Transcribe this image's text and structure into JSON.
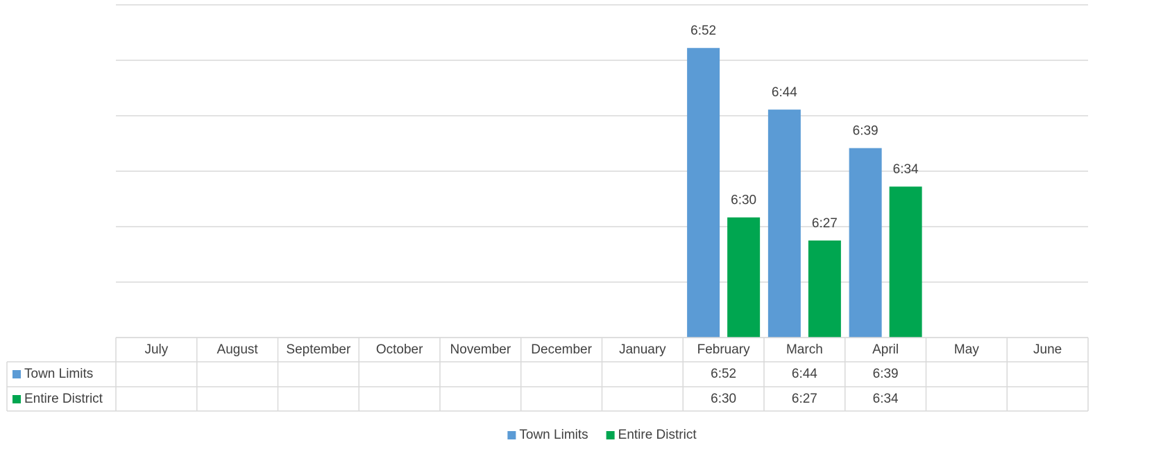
{
  "chart_data": {
    "type": "bar",
    "categories": [
      "July",
      "August",
      "September",
      "October",
      "November",
      "December",
      "January",
      "February",
      "March",
      "April",
      "May",
      "June"
    ],
    "series": [
      {
        "name": "Town Limits",
        "color": "#5b9bd5",
        "values": [
          null,
          null,
          null,
          null,
          null,
          null,
          null,
          412,
          404,
          399,
          null,
          null
        ],
        "value_labels": [
          null,
          null,
          null,
          null,
          null,
          null,
          null,
          "6:52",
          "6:44",
          "6:39",
          null,
          null
        ]
      },
      {
        "name": "Entire District",
        "color": "#00a650",
        "values": [
          null,
          null,
          null,
          null,
          null,
          null,
          null,
          390,
          387,
          394,
          null,
          null
        ],
        "value_labels": [
          null,
          null,
          null,
          null,
          null,
          null,
          null,
          "6:30",
          "6:27",
          "6:34",
          null,
          null
        ]
      }
    ],
    "ylim": [
      374.4,
      417.6
    ],
    "yticks": [
      374.4,
      381.6,
      388.8,
      396,
      403.2,
      410.4,
      417.6
    ],
    "grid": true,
    "legend": "bottom",
    "data_table": true
  }
}
